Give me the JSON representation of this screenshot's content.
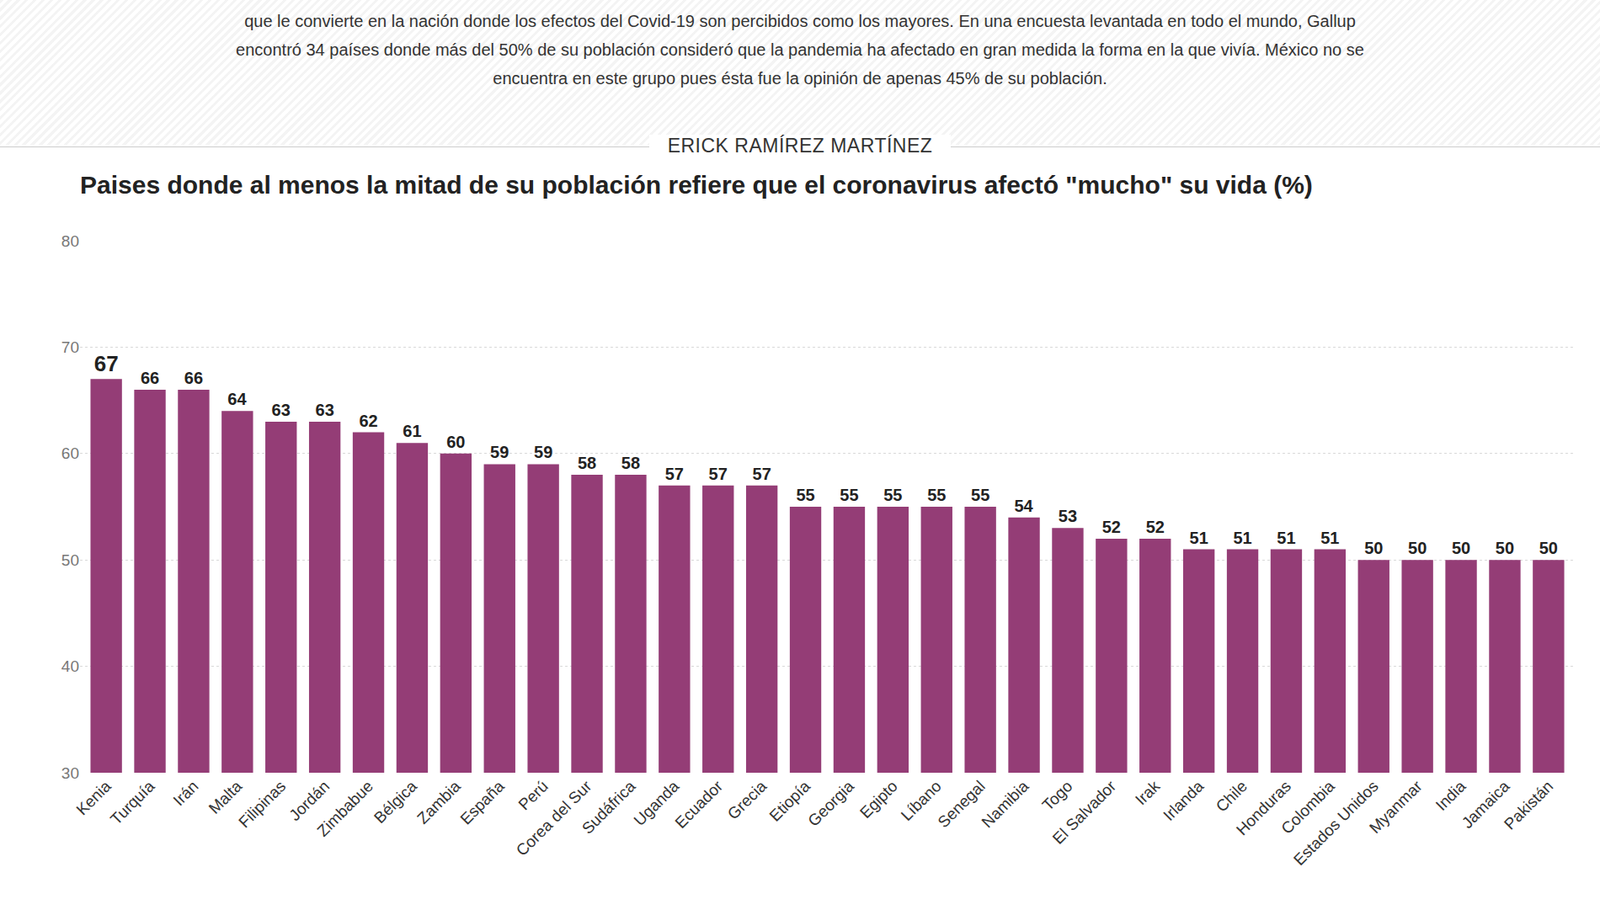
{
  "chart_data": {
    "type": "bar",
    "title": "Paises donde al menos la mitad de su población refiere que el coronavirus afectó \"mucho\" su vida (%)",
    "annotations": [
      "que le convierte en la nación donde los efectos del Covid-19 son percibidos como los mayores. En una encuesta levantada en todo el mundo, Gallup encontró 34 países donde más del 50% de su población consideró que la pandemia ha afectado en gran medida la forma en la que vivía. México no se encuentra en este grupo pues ésta fue la opinión de apenas 45% de su población.",
      "ERICK RAMÍREZ MARTÍNEZ"
    ],
    "categories": [
      "Kenia",
      "Turquía",
      "Irán",
      "Malta",
      "Filipinas",
      "Jordán",
      "Zimbabue",
      "Bélgica",
      "Zambia",
      "España",
      "Perú",
      "Corea del Sur",
      "Sudáfrica",
      "Uganda",
      "Ecuador",
      "Grecia",
      "Etiopía",
      "Georgia",
      "Egipto",
      "Líbano",
      "Senegal",
      "Namibia",
      "Togo",
      "El Salvador",
      "Irak",
      "Irlanda",
      "Chile",
      "Honduras",
      "Colombia",
      "Estados Unidos",
      "Myanmar",
      "India",
      "Jamaica",
      "Pakistán"
    ],
    "values": [
      67,
      66,
      66,
      64,
      63,
      63,
      62,
      61,
      60,
      59,
      59,
      58,
      58,
      57,
      57,
      57,
      55,
      55,
      55,
      55,
      55,
      54,
      53,
      52,
      52,
      51,
      51,
      51,
      51,
      50,
      50,
      50,
      50,
      50
    ],
    "color": "#943d76",
    "ylim": [
      30,
      80
    ],
    "yticks": [
      30,
      40,
      50,
      60,
      70,
      80
    ],
    "grid": true,
    "data_labels": true
  }
}
